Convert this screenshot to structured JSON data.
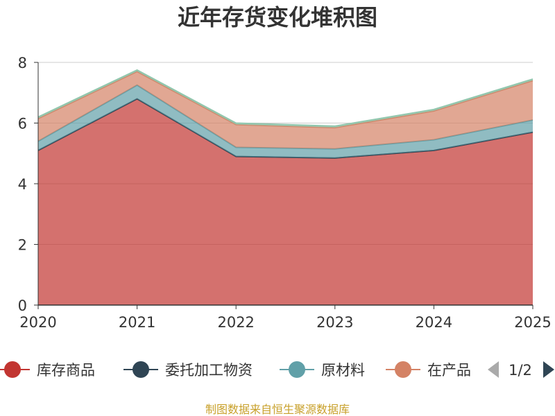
{
  "chart_data": {
    "type": "area",
    "stacked": true,
    "title": "近年存货变化堆积图",
    "categories": [
      "2020",
      "2021",
      "2022",
      "2023",
      "2024",
      "2025"
    ],
    "ylim": [
      0,
      8
    ],
    "yticks": [
      0,
      2,
      4,
      6,
      8
    ],
    "grid": true,
    "series": [
      {
        "name": "库存商品",
        "color": "#c23531",
        "values": [
          5.1,
          6.8,
          4.9,
          4.85,
          5.1,
          5.7
        ]
      },
      {
        "name": "委托加工物资",
        "color": "#2f4554",
        "values": [
          0.0,
          0.0,
          0.0,
          0.0,
          0.0,
          0.0
        ]
      },
      {
        "name": "原材料",
        "color": "#61a0a8",
        "values": [
          0.3,
          0.45,
          0.3,
          0.3,
          0.35,
          0.4
        ]
      },
      {
        "name": "在产品",
        "color": "#d48265",
        "values": [
          0.75,
          0.45,
          0.75,
          0.7,
          0.95,
          1.3
        ]
      },
      {
        "name": "",
        "color": "#91c7ae",
        "values": [
          0.05,
          0.05,
          0.05,
          0.05,
          0.05,
          0.05
        ]
      }
    ],
    "legend": {
      "position": "bottom",
      "items": [
        "库存商品",
        "委托加工物资",
        "原材料",
        "在产品"
      ],
      "page": "1/2"
    }
  },
  "source_note": "制图数据来自恒生聚源数据库"
}
